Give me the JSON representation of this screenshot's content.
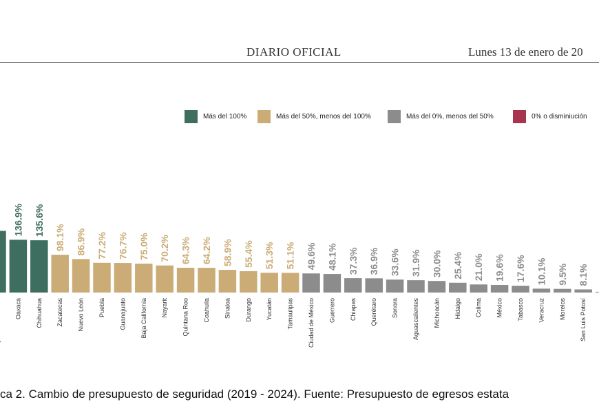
{
  "header": {
    "center_text": "DIARIO OFICIAL",
    "right_text": "Lunes 13 de enero de 20"
  },
  "legend": {
    "items": [
      {
        "label": "Más del 100%",
        "color": "#3e6e5f"
      },
      {
        "label": "Más del 50%, menos del 100%",
        "color": "#cbac76"
      },
      {
        "label": "Más del 0%, menos del 50%",
        "color": "#8c8c8c"
      },
      {
        "label": "0% o disminiución",
        "color": "#a8354f"
      }
    ]
  },
  "caption": "ca 2. Cambio de presupuesto de seguridad (2019 - 2024). Fuente: Presupuesto de egresos estata",
  "chart_data": {
    "type": "bar",
    "categories": [
      "Baja California Sur",
      "Oaxaca",
      "Chihuahua",
      "Zacatecas",
      "Nuevo León",
      "Puebla",
      "Guanajuato",
      "Baja California",
      "Nayarit",
      "Quintana Roo",
      "Coahuila",
      "Sinaloa",
      "Durango",
      "Yucatán",
      "Tamaulipas",
      "Ciudad de México",
      "Guerrero",
      "Chiapas",
      "Querétaro",
      "Sonora",
      "Aguascalientes",
      "Michoacán",
      "Hidalgo",
      "Colima",
      "México",
      "Tabasco",
      "Veracruz",
      "Morelos",
      "San Luis Potosí",
      ""
    ],
    "values": [
      160.0,
      136.9,
      135.6,
      98.1,
      86.9,
      77.2,
      76.7,
      75.0,
      70.2,
      64.3,
      64.2,
      58.9,
      55.4,
      51.3,
      51.1,
      49.6,
      48.1,
      37.3,
      36.9,
      33.6,
      31.9,
      30.0,
      25.4,
      21.0,
      19.6,
      17.6,
      10.1,
      9.5,
      8.1,
      2.0
    ],
    "data_labels": [
      "",
      "136.9%",
      "135.6%",
      "98.1%",
      "86.9%",
      "77.2%",
      "76.7%",
      "75.0%",
      "70.2%",
      "64.3%",
      "64.2%",
      "58.9%",
      "55.4%",
      "51.3%",
      "51.1%",
      "49.6%",
      "48.1%",
      "37.3%",
      "36.9%",
      "33.6%",
      "31.9%",
      "30.0%",
      "25.4%",
      "21.0%",
      "19.6%",
      "17.6%",
      "10.1%",
      "9.5%",
      "8.1%",
      ""
    ],
    "legend_position": "top-right",
    "grid": false
  }
}
